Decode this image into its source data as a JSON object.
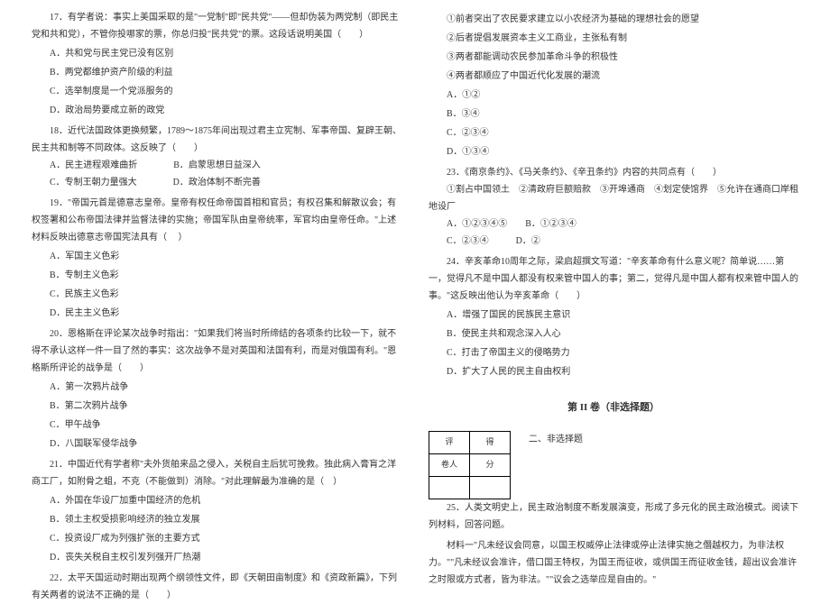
{
  "col1": {
    "q17": {
      "text": "17．有学者说：事实上美国采取的是\"一党制\"即\"民共党\"——但却伪装为两党制（即民主党和共和党），不管你投哪家的票，你总归投\"民共党\"的票。这段话说明美国（　　）",
      "optA": "A．共和党与民主党已没有区别",
      "optB": "B．两党都维护资产阶级的利益",
      "optC": "C．选举制度是一个党派服务的",
      "optD": "D．政治局势要成立新的政党"
    },
    "q18": {
      "text": "18．近代法国政体更换频繁，1789～1875年间出现过君主立宪制、军事帝国、复辟王朝、民主共和制等不同政体。这反映了（　　）",
      "optA": "A．民主进程艰难曲折　　　　B．启蒙思想日益深入",
      "optC": "C．专制王朝力量强大　　　　D．政治体制不断完善"
    },
    "q19": {
      "text": "19．\"帝国元首是德意志皇帝。皇帝有权任命帝国首相和官员；有权召集和解散议会；有权签署和公布帝国法律并监督法律的实施；帝国军队由皇帝统率，军官均由皇帝任命。\"上述材料反映出德意志帝国宪法具有（ 　）",
      "optA": "A．军国主义色彩",
      "optB": "B．专制主义色彩",
      "optC": "C．民族主义色彩",
      "optD": "D．民主主义色彩"
    },
    "q20": {
      "text": "20．恩格斯在评论某次战争时指出：\"如果我们将当时所缔结的各项条约比较一下，就不得不承认这样一件一目了然的事实：这次战争不是对英国和法国有利，而是对俄国有利。\"恩格斯所评论的战争是（　　）",
      "optA": "A．第一次鸦片战争",
      "optB": "B．第二次鸦片战争",
      "optC": "C．甲午战争",
      "optD": "D．八国联军侵华战争"
    },
    "q21": {
      "text": "21．中国近代有学者称\"夫外货舶来品之侵入，关税自主后犹可挽救。独此病入膏肓之洋商工厂，如附骨之蛆，不克（不能做到）消除。\"对此理解最为准确的是（　）",
      "optA": "A．外国在华设厂加重中国经济的危机",
      "optB": "B．领土主权受损影响经济的独立发展",
      "optC": "C．投资设厂成为列强扩张的主要方式",
      "optD": "D．丧失关税自主权引发列强开厂热潮"
    },
    "q22": {
      "text": "22．太平天国运动时期出现两个纲领性文件，即《天朝田亩制度》和《资政新篇》，下列有关两者的说法不正确的是（　　）"
    }
  },
  "col2": {
    "q22opts": {
      "opt1": "①前者突出了农民要求建立以小农经济为基础的理想社会的愿望",
      "opt2": "②后者提倡发展资本主义工商业，主张私有制",
      "opt3": "③两者都能调动农民参加革命斗争的积极性",
      "opt4": "④两者都顺应了中国近代化发展的潮流",
      "optA": "A．①②",
      "optB": "B．③④",
      "optC": "C．②③④",
      "optD": "D．①③④"
    },
    "q23": {
      "text": "23．《南京条约》、《马关条约》、《辛丑条约》内容的共同点有（　　）",
      "opts": "①割占中国领土　②清政府巨额赔款　③开埠通商　④划定使馆界　⑤允许在通商口岸租地设厂",
      "optA": "A．①②③④⑤　　B．①②③④",
      "optC": "C．②③④　　　D．②"
    },
    "q24": {
      "text": "24．辛亥革命10周年之际，梁启超撰文写道：\"辛亥革命有什么意义呢？简单说……第一，觉得凡不是中国人都没有权来管中国人的事；第二，觉得凡是中国人都有权来管中国人的事。\"这反映出他认为辛亥革命（　　）",
      "optA": "A．增强了国民的民族民主意识",
      "optB": "B．使民主共和观念深入人心",
      "optC": "C．打击了帝国主义的侵略势力",
      "optD": "D．扩大了人民的民主自由权利"
    },
    "sectionTitle": "第 II 卷（非选择题）",
    "scoreTable": {
      "r1c1": "评",
      "r1c2": "得",
      "r2c1": "卷人",
      "r2c2": "分"
    },
    "subTitle": "二、非选择题",
    "q25": {
      "text": "25．人类文明史上，民主政治制度不断发展演变，形成了多元化的民主政治模式。阅读下列材料，回答问题。",
      "material": "材料一\"凡未经议会同意，以国王权威停止法律或停止法律实施之僭越权力，为非法权力。\"\"凡未经议会准许，借口国王特权，为国王而征收，或供国王而征收金钱，超出议会准许之时限或方式者，皆为非法。\"\"议会之选举应是自由的。\""
    }
  }
}
